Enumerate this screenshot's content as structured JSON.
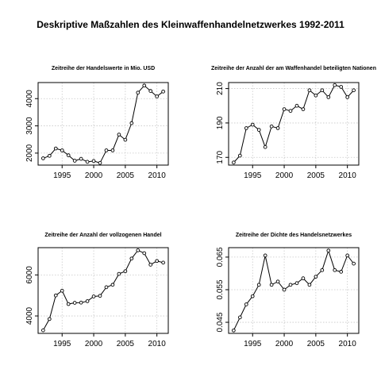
{
  "figure_title": "Deskriptive Maßzahlen des Kleinwaffenhandelnetzwerkes 1992-2011",
  "chart_data": [
    {
      "type": "line",
      "title": "Zeitreihe der Handelswerte in Mio. USD",
      "xlabel": "",
      "ylabel": "",
      "x": [
        1992,
        1993,
        1994,
        1995,
        1996,
        1997,
        1998,
        1999,
        2000,
        2001,
        2002,
        2003,
        2004,
        2005,
        2006,
        2007,
        2008,
        2009,
        2010,
        2011
      ],
      "values": [
        1810,
        1900,
        2170,
        2100,
        1920,
        1720,
        1790,
        1680,
        1710,
        1640,
        2100,
        2100,
        2680,
        2490,
        3100,
        4220,
        4480,
        4280,
        4080,
        4260
      ],
      "xlim": [
        1991.2,
        2011.8
      ],
      "ylim": [
        1560,
        4590
      ],
      "xticks": [
        1995,
        2000,
        2005,
        2010
      ],
      "yticks": [
        2000,
        3000,
        4000
      ],
      "grid": true
    },
    {
      "type": "line",
      "title": "Zeitreihe der Anzahl der am Waffenhandel beteiligten Nationen",
      "xlabel": "",
      "ylabel": "",
      "x": [
        1992,
        1993,
        1994,
        1995,
        1996,
        1997,
        1998,
        1999,
        2000,
        2001,
        2002,
        2003,
        2004,
        2005,
        2006,
        2007,
        2008,
        2009,
        2010,
        2011
      ],
      "values": [
        167,
        171,
        187,
        189,
        186,
        176,
        188,
        187,
        198,
        197,
        200,
        198,
        209,
        206,
        209,
        205,
        212,
        211,
        205,
        209
      ],
      "xlim": [
        1991.2,
        2011.8
      ],
      "ylim": [
        165.5,
        213.5
      ],
      "xticks": [
        1995,
        2000,
        2005,
        2010
      ],
      "yticks": [
        170,
        190,
        210
      ],
      "grid": true
    },
    {
      "type": "line",
      "title": "Zeitreihe der Anzahl der vollzogenen Handel",
      "xlabel": "",
      "ylabel": "",
      "x": [
        1992,
        1993,
        1994,
        1995,
        1996,
        1997,
        1998,
        1999,
        2000,
        2001,
        2002,
        2003,
        2004,
        2005,
        2006,
        2007,
        2008,
        2009,
        2010,
        2011
      ],
      "values": [
        3300,
        3850,
        5000,
        5230,
        4580,
        4640,
        4650,
        4720,
        4950,
        4980,
        5400,
        5520,
        6050,
        6180,
        6800,
        7200,
        7060,
        6500,
        6680,
        6600
      ],
      "xlim": [
        1991.2,
        2011.8
      ],
      "ylim": [
        3150,
        7330
      ],
      "xticks": [
        1995,
        2000,
        2005,
        2010
      ],
      "yticks": [
        4000,
        6000
      ],
      "grid": true
    },
    {
      "type": "line",
      "title": "Zeitreihe der Dichte des Handelsnetzwerkes",
      "xlabel": "",
      "ylabel": "",
      "x": [
        1992,
        1993,
        1994,
        1995,
        1996,
        1997,
        1998,
        1999,
        2000,
        2001,
        2002,
        2003,
        2004,
        2005,
        2006,
        2007,
        2008,
        2009,
        2010,
        2011
      ],
      "values": [
        0.0425,
        0.0465,
        0.0505,
        0.053,
        0.0565,
        0.0655,
        0.0565,
        0.0575,
        0.055,
        0.0565,
        0.057,
        0.0585,
        0.0565,
        0.059,
        0.061,
        0.067,
        0.061,
        0.0605,
        0.0655,
        0.063
      ],
      "xlim": [
        1991.2,
        2011.8
      ],
      "ylim": [
        0.0416,
        0.0679
      ],
      "xticks": [
        1995,
        2000,
        2005,
        2010
      ],
      "yticks": [
        0.045,
        0.055,
        0.065
      ],
      "grid": true
    }
  ]
}
